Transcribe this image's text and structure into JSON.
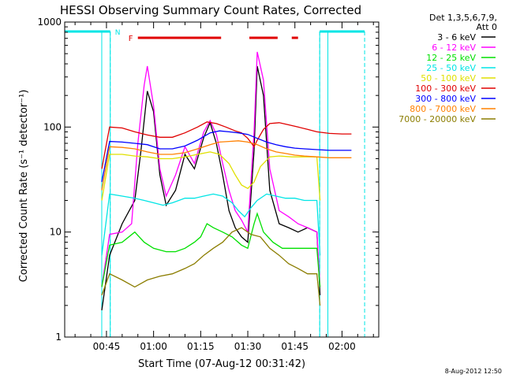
{
  "chart_data": {
    "type": "line",
    "title": "HESSI Observing Summary Count Rates, Corrected",
    "xlabel": "Start Time (07-Aug-12 00:31:42)",
    "ylabel": "Corrected Count Rate (s⁻¹ detector⁻¹)",
    "y_scale": "log",
    "ylim": [
      1,
      1000
    ],
    "y_ticks": [
      {
        "value": 1,
        "label": "1"
      },
      {
        "value": 10,
        "label": "10"
      },
      {
        "value": 100,
        "label": "100"
      },
      {
        "value": 1000,
        "label": "1000"
      }
    ],
    "xlim_minutes": [
      31.7,
      131.7
    ],
    "x_ticks": [
      {
        "value": 45,
        "label": "00:45"
      },
      {
        "value": 60,
        "label": "01:00"
      },
      {
        "value": 75,
        "label": "01:15"
      },
      {
        "value": 90,
        "label": "01:30"
      },
      {
        "value": 105,
        "label": "01:45"
      },
      {
        "value": 120,
        "label": "02:00"
      }
    ],
    "legend_header": [
      "Det 1,3,5,6,7,9,",
      "Att 0"
    ],
    "legend_placement": "right",
    "timestamp": "8-Aug-2012 12:50",
    "flags": {
      "night_label": "N",
      "flare_label": "F",
      "night_color": "#00e5e5",
      "flare_color": "#e00000",
      "night_segments": [
        [
          31.7,
          46.2
        ],
        [
          112.9,
          127.2
        ]
      ],
      "flare_segments": [
        [
          55.0,
          81.5
        ],
        [
          90.5,
          99.5
        ],
        [
          104.0,
          106.0
        ]
      ],
      "data_gaps": [
        [
          43.5,
          46.2
        ],
        [
          112.9,
          115.5
        ]
      ],
      "night_markers": [
        46.2,
        112.9,
        127.2
      ]
    },
    "series": [
      {
        "name": "3 - 6 keV",
        "color": "#000000",
        "points": [
          [
            43.5,
            1.8
          ],
          [
            46,
            6
          ],
          [
            50,
            12
          ],
          [
            54,
            20
          ],
          [
            56,
            60
          ],
          [
            58,
            220
          ],
          [
            60,
            140
          ],
          [
            62,
            35
          ],
          [
            64,
            18
          ],
          [
            67,
            25
          ],
          [
            70,
            55
          ],
          [
            73,
            40
          ],
          [
            76,
            80
          ],
          [
            78,
            110
          ],
          [
            80,
            70
          ],
          [
            82,
            35
          ],
          [
            84,
            16
          ],
          [
            86,
            11
          ],
          [
            88,
            9
          ],
          [
            90,
            8
          ],
          [
            92,
            60
          ],
          [
            93,
            380
          ],
          [
            95,
            200
          ],
          [
            97,
            25
          ],
          [
            100,
            12
          ],
          [
            103,
            11
          ],
          [
            106,
            10
          ],
          [
            109,
            11
          ],
          [
            112,
            10
          ],
          [
            113,
            2.5
          ]
        ]
      },
      {
        "name": "6 - 12 keV",
        "color": "#ff00ff",
        "points": [
          [
            43.5,
            3
          ],
          [
            46,
            9.5
          ],
          [
            50,
            10
          ],
          [
            53,
            12
          ],
          [
            55,
            70
          ],
          [
            57,
            250
          ],
          [
            58,
            380
          ],
          [
            60,
            160
          ],
          [
            62,
            40
          ],
          [
            64,
            22
          ],
          [
            67,
            35
          ],
          [
            70,
            65
          ],
          [
            73,
            45
          ],
          [
            76,
            90
          ],
          [
            78,
            115
          ],
          [
            80,
            85
          ],
          [
            82,
            45
          ],
          [
            84,
            25
          ],
          [
            86,
            16
          ],
          [
            88,
            13
          ],
          [
            90,
            10
          ],
          [
            92,
            90
          ],
          [
            93,
            520
          ],
          [
            95,
            280
          ],
          [
            97,
            40
          ],
          [
            100,
            16
          ],
          [
            103,
            14
          ],
          [
            106,
            12
          ],
          [
            109,
            11
          ],
          [
            112,
            10
          ],
          [
            113,
            3
          ]
        ]
      },
      {
        "name": "12 - 25 keV",
        "color": "#00e000",
        "points": [
          [
            43.5,
            3
          ],
          [
            46,
            7.5
          ],
          [
            50,
            8
          ],
          [
            54,
            10
          ],
          [
            57,
            8
          ],
          [
            60,
            7
          ],
          [
            64,
            6.5
          ],
          [
            67,
            6.5
          ],
          [
            70,
            7
          ],
          [
            73,
            8
          ],
          [
            75,
            9
          ],
          [
            77,
            12
          ],
          [
            79,
            11
          ],
          [
            82,
            10
          ],
          [
            85,
            9
          ],
          [
            88,
            7.5
          ],
          [
            90,
            7
          ],
          [
            92,
            12
          ],
          [
            93,
            15
          ],
          [
            95,
            10
          ],
          [
            98,
            8
          ],
          [
            101,
            7
          ],
          [
            104,
            7
          ],
          [
            108,
            7
          ],
          [
            112,
            7
          ],
          [
            113,
            3
          ]
        ]
      },
      {
        "name": "25 - 50 keV",
        "color": "#00e5e5",
        "points": [
          [
            43.5,
            6
          ],
          [
            46,
            23
          ],
          [
            50,
            22
          ],
          [
            54,
            21
          ],
          [
            57,
            20
          ],
          [
            60,
            19
          ],
          [
            63,
            18
          ],
          [
            66,
            19
          ],
          [
            70,
            21
          ],
          [
            73,
            21
          ],
          [
            76,
            22
          ],
          [
            79,
            23
          ],
          [
            82,
            22
          ],
          [
            85,
            19
          ],
          [
            87,
            16
          ],
          [
            89,
            14
          ],
          [
            91,
            17
          ],
          [
            93,
            20
          ],
          [
            96,
            23
          ],
          [
            99,
            22
          ],
          [
            102,
            21
          ],
          [
            105,
            21
          ],
          [
            108,
            20
          ],
          [
            112,
            20
          ],
          [
            113,
            6
          ]
        ]
      },
      {
        "name": "50 - 100 keV",
        "color": "#e0e000",
        "points": [
          [
            43.5,
            20
          ],
          [
            46,
            55
          ],
          [
            50,
            55
          ],
          [
            54,
            53
          ],
          [
            58,
            52
          ],
          [
            62,
            50
          ],
          [
            66,
            50
          ],
          [
            70,
            52
          ],
          [
            74,
            55
          ],
          [
            78,
            58
          ],
          [
            81,
            55
          ],
          [
            84,
            45
          ],
          [
            86,
            35
          ],
          [
            88,
            28
          ],
          [
            90,
            26
          ],
          [
            92,
            30
          ],
          [
            94,
            42
          ],
          [
            97,
            52
          ],
          [
            100,
            53
          ],
          [
            104,
            52
          ],
          [
            108,
            52
          ],
          [
            112,
            52
          ],
          [
            113,
            20
          ]
        ]
      },
      {
        "name": "100 - 300 keV",
        "color": "#e00000",
        "points": [
          [
            43.5,
            40
          ],
          [
            46,
            100
          ],
          [
            50,
            98
          ],
          [
            54,
            90
          ],
          [
            58,
            84
          ],
          [
            62,
            80
          ],
          [
            66,
            80
          ],
          [
            70,
            88
          ],
          [
            74,
            100
          ],
          [
            77,
            112
          ],
          [
            80,
            108
          ],
          [
            83,
            100
          ],
          [
            86,
            92
          ],
          [
            88,
            88
          ],
          [
            90,
            78
          ],
          [
            92,
            65
          ],
          [
            93,
            75
          ],
          [
            95,
            95
          ],
          [
            97,
            108
          ],
          [
            100,
            110
          ],
          [
            103,
            105
          ],
          [
            106,
            100
          ],
          [
            109,
            95
          ],
          [
            112,
            90
          ],
          [
            116,
            87
          ],
          [
            120,
            86
          ],
          [
            123,
            86
          ]
        ]
      },
      {
        "name": "300 - 800 keV",
        "color": "#0000ff",
        "points": [
          [
            43.5,
            30
          ],
          [
            46,
            73
          ],
          [
            50,
            72
          ],
          [
            54,
            70
          ],
          [
            58,
            68
          ],
          [
            62,
            62
          ],
          [
            66,
            62
          ],
          [
            70,
            66
          ],
          [
            74,
            75
          ],
          [
            78,
            88
          ],
          [
            81,
            92
          ],
          [
            84,
            90
          ],
          [
            87,
            88
          ],
          [
            90,
            85
          ],
          [
            93,
            78
          ],
          [
            96,
            72
          ],
          [
            99,
            68
          ],
          [
            102,
            65
          ],
          [
            105,
            63
          ],
          [
            108,
            62
          ],
          [
            112,
            61
          ],
          [
            116,
            60
          ],
          [
            120,
            60
          ],
          [
            123,
            60
          ]
        ]
      },
      {
        "name": "800 - 7000 keV",
        "color": "#ff8000",
        "points": [
          [
            43.5,
            25
          ],
          [
            46,
            65
          ],
          [
            50,
            64
          ],
          [
            54,
            62
          ],
          [
            58,
            58
          ],
          [
            62,
            55
          ],
          [
            66,
            55
          ],
          [
            70,
            57
          ],
          [
            74,
            62
          ],
          [
            78,
            68
          ],
          [
            81,
            72
          ],
          [
            84,
            73
          ],
          [
            87,
            74
          ],
          [
            90,
            72
          ],
          [
            93,
            68
          ],
          [
            96,
            62
          ],
          [
            99,
            58
          ],
          [
            102,
            56
          ],
          [
            105,
            54
          ],
          [
            108,
            53
          ],
          [
            112,
            52
          ],
          [
            116,
            51
          ],
          [
            120,
            51
          ],
          [
            123,
            51
          ]
        ]
      },
      {
        "name": "7000 - 20000 keV",
        "color": "#8b7d00",
        "points": [
          [
            43.5,
            2.5
          ],
          [
            46,
            4
          ],
          [
            50,
            3.5
          ],
          [
            54,
            3
          ],
          [
            58,
            3.5
          ],
          [
            62,
            3.8
          ],
          [
            66,
            4
          ],
          [
            70,
            4.5
          ],
          [
            73,
            5
          ],
          [
            76,
            6
          ],
          [
            79,
            7
          ],
          [
            82,
            8
          ],
          [
            85,
            10
          ],
          [
            88,
            11
          ],
          [
            91,
            9.5
          ],
          [
            94,
            9
          ],
          [
            97,
            7
          ],
          [
            100,
            6
          ],
          [
            103,
            5
          ],
          [
            106,
            4.5
          ],
          [
            109,
            4
          ],
          [
            112,
            4
          ],
          [
            113,
            2
          ]
        ]
      }
    ]
  }
}
